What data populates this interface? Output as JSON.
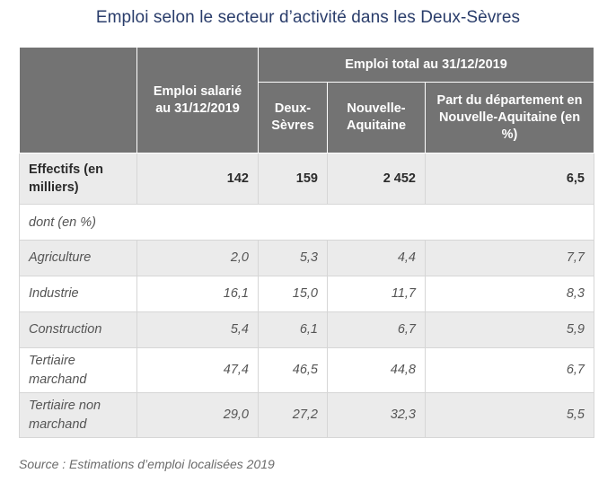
{
  "title": "Emploi selon le secteur d’activité dans les Deux-Sèvres",
  "table": {
    "headers": {
      "empty": "",
      "salarie": "Emploi salarié au 31/12/2019",
      "total_group": "Emploi total au 31/12/2019",
      "deux_sevres": "Deux-Sèvres",
      "nouvelle_aquitaine": "Nouvelle-Aquitaine",
      "part": "Part du département en Nouvelle-Aquitaine (en %)"
    },
    "total_row": {
      "label": "Effectifs (en milliers)",
      "values": [
        "142",
        "159",
        "2 452",
        "6,5"
      ]
    },
    "sub_label": "dont (en %)",
    "rows": [
      {
        "label": "Agriculture",
        "values": [
          "2,0",
          "5,3",
          "4,4",
          "7,7"
        ]
      },
      {
        "label": "Industrie",
        "values": [
          "16,1",
          "15,0",
          "11,7",
          "8,3"
        ]
      },
      {
        "label": "Construction",
        "values": [
          "5,4",
          "6,1",
          "6,7",
          "5,9"
        ]
      },
      {
        "label": "Tertiaire marchand",
        "values": [
          "47,4",
          "46,5",
          "44,8",
          "6,7"
        ]
      },
      {
        "label": "Tertiaire non marchand",
        "values": [
          "29,0",
          "27,2",
          "32,3",
          "5,5"
        ]
      }
    ]
  },
  "source": "Source : Estimations d’emploi localisées 2019"
}
